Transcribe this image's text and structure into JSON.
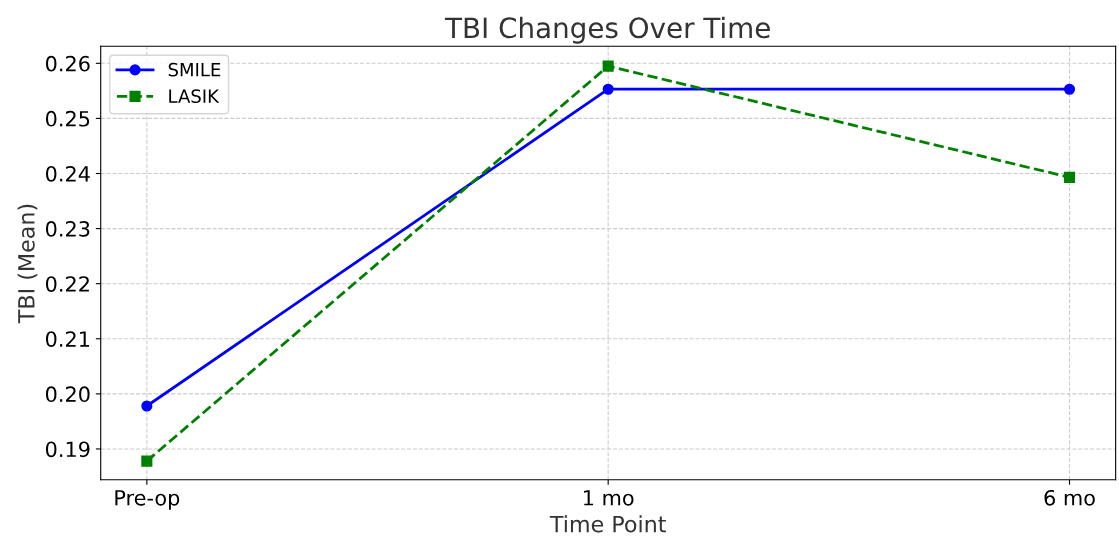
{
  "chart_data": {
    "type": "line",
    "title": "TBI Changes Over Time",
    "xlabel": "Time Point",
    "ylabel": "TBI (Mean)",
    "categories": [
      "Pre-op",
      "1 mo",
      "6 mo"
    ],
    "series": [
      {
        "name": "SMILE",
        "color": "#0000ff",
        "values": [
          0.1978,
          0.2553,
          0.2553
        ],
        "marker": "circle",
        "line_style": "solid"
      },
      {
        "name": "LASIK",
        "color": "#008000",
        "values": [
          0.1878,
          0.2595,
          0.2393
        ],
        "marker": "square",
        "line_style": "dashed"
      }
    ],
    "ylim": [
      0.1844,
      0.2631
    ],
    "yticks": [
      0.19,
      {
        "value": 0.2,
        "label": "0.20"
      },
      0.21,
      0.22,
      0.23,
      0.24,
      0.25,
      0.26
    ],
    "grid": true,
    "legend": "top left"
  }
}
